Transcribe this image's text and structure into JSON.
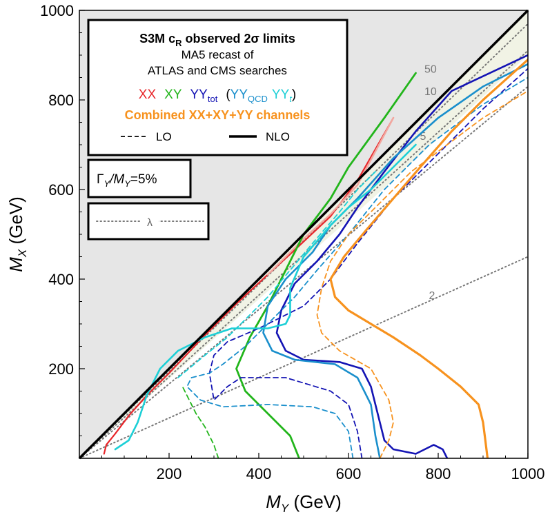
{
  "chart_data": {
    "type": "line",
    "title": "S3M cR observed 2σ limits",
    "xlabel": "M_Y (GeV)",
    "ylabel": "M_X (GeV)",
    "xlim": [
      0,
      1000
    ],
    "ylim": [
      0,
      1000
    ],
    "xticks": [
      200,
      400,
      600,
      800,
      1000
    ],
    "yticks": [
      200,
      400,
      600,
      800,
      1000
    ],
    "excluded_region": "M_X > M_Y (shaded grey)",
    "legend": {
      "title_main": "S3M c",
      "title_sub": "R",
      "title_rest": " observed 2σ limits",
      "subtitle1": "MA5 recast of",
      "subtitle2": "ATLAS and CMS searches",
      "entries": [
        {
          "label": "XX",
          "color": "#e8262a"
        },
        {
          "label": "XY",
          "color": "#22b51b"
        },
        {
          "label": "YY",
          "sub": "tot",
          "color": "#1414b4"
        },
        {
          "label": "YY",
          "sub": "QCD",
          "color": "#1a8fcc"
        },
        {
          "label": "YY",
          "sub": "t",
          "color": "#1ccfd6"
        }
      ],
      "open_paren": "(",
      "close_paren": ")",
      "combined": "Combined XX+XY+YY channels",
      "combined_color": "#f7921e",
      "lo_label": "LO",
      "nlo_label": "NLO"
    },
    "width_box": {
      "text": "Γ",
      "sub": "Y",
      "slash": "/M",
      "sub2": "Y",
      "value": "=5%"
    },
    "lambda_box": {
      "text": "λ"
    },
    "lambda_contours": [
      {
        "label": "50",
        "points": [
          [
            0,
            0
          ],
          [
            1000,
            970
          ]
        ]
      },
      {
        "label": "10",
        "points": [
          [
            0,
            0
          ],
          [
            1000,
            910
          ]
        ]
      },
      {
        "label": "5",
        "points": [
          [
            0,
            0
          ],
          [
            1000,
            830
          ]
        ]
      },
      {
        "label": "2",
        "points": [
          [
            0,
            0
          ],
          [
            1000,
            450
          ]
        ]
      }
    ],
    "series": [
      {
        "name": "XX NLO",
        "color": "#e8262a",
        "style": "solid",
        "width": 2.2,
        "points": [
          [
            55,
            10
          ],
          [
            60,
            30
          ],
          [
            80,
            55
          ],
          [
            110,
            95
          ],
          [
            150,
            140
          ],
          [
            200,
            190
          ],
          [
            280,
            275
          ],
          [
            350,
            345
          ],
          [
            420,
            410
          ],
          [
            480,
            465
          ],
          [
            560,
            540
          ],
          [
            620,
            620
          ],
          [
            700,
            760
          ]
        ]
      },
      {
        "name": "XX NLO (faint)",
        "color": "#f2a8a0",
        "style": "solid",
        "width": 2.5,
        "points": [
          [
            420,
            410
          ],
          [
            500,
            490
          ],
          [
            560,
            545
          ],
          [
            620,
            610
          ],
          [
            700,
            760
          ]
        ]
      },
      {
        "name": "XY NLO",
        "color": "#22b51b",
        "style": "solid",
        "width": 2.8,
        "points": [
          [
            490,
            0
          ],
          [
            470,
            50
          ],
          [
            420,
            100
          ],
          [
            370,
            150
          ],
          [
            350,
            200
          ],
          [
            380,
            270
          ],
          [
            420,
            340
          ],
          [
            460,
            420
          ],
          [
            500,
            500
          ],
          [
            560,
            580
          ],
          [
            600,
            650
          ],
          [
            680,
            760
          ],
          [
            750,
            860
          ]
        ]
      },
      {
        "name": "XY LO",
        "color": "#22b51b",
        "style": "dashed",
        "width": 1.8,
        "points": [
          [
            310,
            0
          ],
          [
            300,
            30
          ],
          [
            280,
            70
          ],
          [
            260,
            100
          ],
          [
            240,
            140
          ],
          [
            230,
            160
          ]
        ]
      },
      {
        "name": "YYtot NLO",
        "color": "#1414b4",
        "style": "solid",
        "width": 2.6,
        "points": [
          [
            820,
            0
          ],
          [
            810,
            20
          ],
          [
            790,
            30
          ],
          [
            770,
            20
          ],
          [
            750,
            10
          ],
          [
            700,
            20
          ],
          [
            680,
            40
          ],
          [
            670,
            80
          ],
          [
            660,
            120
          ],
          [
            650,
            160
          ],
          [
            630,
            200
          ],
          [
            580,
            215
          ],
          [
            500,
            220
          ],
          [
            460,
            240
          ],
          [
            440,
            280
          ],
          [
            450,
            330
          ],
          [
            480,
            390
          ],
          [
            530,
            440
          ],
          [
            580,
            500
          ],
          [
            620,
            560
          ],
          [
            680,
            640
          ],
          [
            750,
            730
          ],
          [
            830,
            820
          ],
          [
            1000,
            900
          ]
        ]
      },
      {
        "name": "YYtot LO",
        "color": "#1414b4",
        "style": "dashed",
        "width": 1.8,
        "points": [
          [
            630,
            0
          ],
          [
            620,
            60
          ],
          [
            600,
            120
          ],
          [
            560,
            150
          ],
          [
            460,
            180
          ],
          [
            360,
            180
          ],
          [
            330,
            160
          ],
          [
            300,
            130
          ],
          [
            290,
            190
          ],
          [
            300,
            230
          ],
          [
            330,
            260
          ],
          [
            400,
            290
          ],
          [
            450,
            315
          ],
          [
            500,
            340
          ],
          [
            560,
            400
          ],
          [
            620,
            480
          ],
          [
            700,
            580
          ],
          [
            800,
            680
          ],
          [
            900,
            780
          ],
          [
            1000,
            870
          ]
        ]
      },
      {
        "name": "YYQCD NLO",
        "color": "#1a8fcc",
        "style": "solid",
        "width": 2.6,
        "points": [
          [
            670,
            0
          ],
          [
            660,
            50
          ],
          [
            650,
            120
          ],
          [
            620,
            180
          ],
          [
            570,
            210
          ],
          [
            480,
            220
          ],
          [
            430,
            240
          ],
          [
            410,
            280
          ],
          [
            420,
            340
          ],
          [
            460,
            400
          ],
          [
            520,
            460
          ],
          [
            560,
            520
          ],
          [
            620,
            580
          ],
          [
            700,
            670
          ],
          [
            800,
            760
          ],
          [
            900,
            830
          ],
          [
            1000,
            880
          ]
        ]
      },
      {
        "name": "YYQCD LO",
        "color": "#1a8fcc",
        "style": "dashed",
        "width": 1.8,
        "points": [
          [
            610,
            0
          ],
          [
            600,
            60
          ],
          [
            570,
            100
          ],
          [
            520,
            115
          ],
          [
            420,
            120
          ],
          [
            320,
            115
          ],
          [
            270,
            130
          ],
          [
            240,
            160
          ],
          [
            250,
            180
          ],
          [
            290,
            190
          ],
          [
            320,
            210
          ],
          [
            370,
            250
          ],
          [
            420,
            300
          ],
          [
            480,
            360
          ],
          [
            530,
            420
          ],
          [
            600,
            500
          ],
          [
            680,
            600
          ],
          [
            780,
            700
          ],
          [
            900,
            790
          ],
          [
            1000,
            850
          ]
        ]
      },
      {
        "name": "YYt NLO",
        "color": "#1ccfd6",
        "style": "solid",
        "width": 2.6,
        "points": [
          [
            80,
            20
          ],
          [
            110,
            40
          ],
          [
            130,
            80
          ],
          [
            150,
            140
          ],
          [
            180,
            200
          ],
          [
            220,
            240
          ],
          [
            280,
            270
          ],
          [
            340,
            290
          ],
          [
            420,
            290
          ],
          [
            460,
            300
          ],
          [
            470,
            320
          ],
          [
            470,
            380
          ],
          [
            500,
            450
          ],
          [
            560,
            520
          ],
          [
            600,
            560
          ],
          [
            650,
            600
          ],
          [
            700,
            650
          ],
          [
            750,
            700
          ]
        ]
      },
      {
        "name": "YYt LO",
        "color": "#1ccfd6",
        "style": "dashed",
        "width": 1.8,
        "points": [
          [
            220,
            180
          ],
          [
            280,
            230
          ],
          [
            330,
            270
          ],
          [
            380,
            320
          ],
          [
            420,
            360
          ],
          [
            470,
            420
          ],
          [
            520,
            480
          ],
          [
            580,
            550
          ],
          [
            620,
            600
          ],
          [
            660,
            640
          ]
        ]
      },
      {
        "name": "Combined NLO",
        "color": "#f7921e",
        "style": "solid",
        "width": 3.2,
        "points": [
          [
            910,
            0
          ],
          [
            905,
            40
          ],
          [
            900,
            80
          ],
          [
            890,
            120
          ],
          [
            850,
            160
          ],
          [
            800,
            200
          ],
          [
            760,
            230
          ],
          [
            700,
            270
          ],
          [
            650,
            300
          ],
          [
            600,
            330
          ],
          [
            570,
            360
          ],
          [
            560,
            400
          ],
          [
            590,
            450
          ],
          [
            640,
            510
          ],
          [
            700,
            580
          ],
          [
            760,
            650
          ],
          [
            830,
            730
          ],
          [
            900,
            800
          ],
          [
            1000,
            890
          ]
        ]
      },
      {
        "name": "Combined LO",
        "color": "#f7921e",
        "style": "dashed",
        "width": 1.8,
        "points": [
          [
            670,
            0
          ],
          [
            690,
            40
          ],
          [
            700,
            80
          ],
          [
            690,
            130
          ],
          [
            650,
            200
          ],
          [
            580,
            240
          ],
          [
            540,
            280
          ],
          [
            530,
            320
          ],
          [
            540,
            380
          ],
          [
            560,
            440
          ],
          [
            600,
            500
          ],
          [
            660,
            560
          ],
          [
            740,
            640
          ],
          [
            820,
            700
          ],
          [
            900,
            760
          ],
          [
            1000,
            820
          ]
        ]
      }
    ]
  }
}
